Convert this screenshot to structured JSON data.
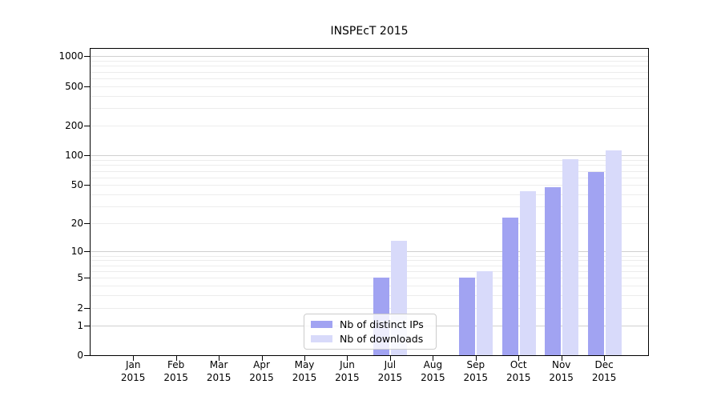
{
  "chart_data": {
    "type": "bar",
    "title": "INSPEcT 2015",
    "year_label": "2015",
    "categories": [
      "Jan",
      "Feb",
      "Mar",
      "Apr",
      "May",
      "Jun",
      "Jul",
      "Aug",
      "Sep",
      "Oct",
      "Nov",
      "Dec"
    ],
    "series": [
      {
        "name": "Nb of distinct IPs",
        "key": "distinct-ips",
        "color": "#a1a3f2",
        "values": [
          0,
          0,
          0,
          0,
          0,
          0,
          5,
          0,
          5,
          23,
          48,
          68
        ]
      },
      {
        "name": "Nb of downloads",
        "key": "downloads",
        "color": "#d8dafa",
        "values": [
          0,
          0,
          0,
          0,
          0,
          0,
          13,
          0,
          6,
          43,
          92,
          113
        ]
      }
    ],
    "y_ticks": [
      0,
      1,
      2,
      5,
      10,
      20,
      50,
      100,
      200,
      500,
      1000
    ],
    "y_scale": "log10(value+1)",
    "ylim": [
      0,
      1230
    ],
    "xlabel": "",
    "ylabel": "",
    "grid": "horizontal",
    "legend_position": "bottom-center",
    "colors": {
      "grid_minor": "#ececec",
      "grid_major": "#d0d0d0",
      "spine": "#000000",
      "legend_border": "#cccccc"
    }
  }
}
